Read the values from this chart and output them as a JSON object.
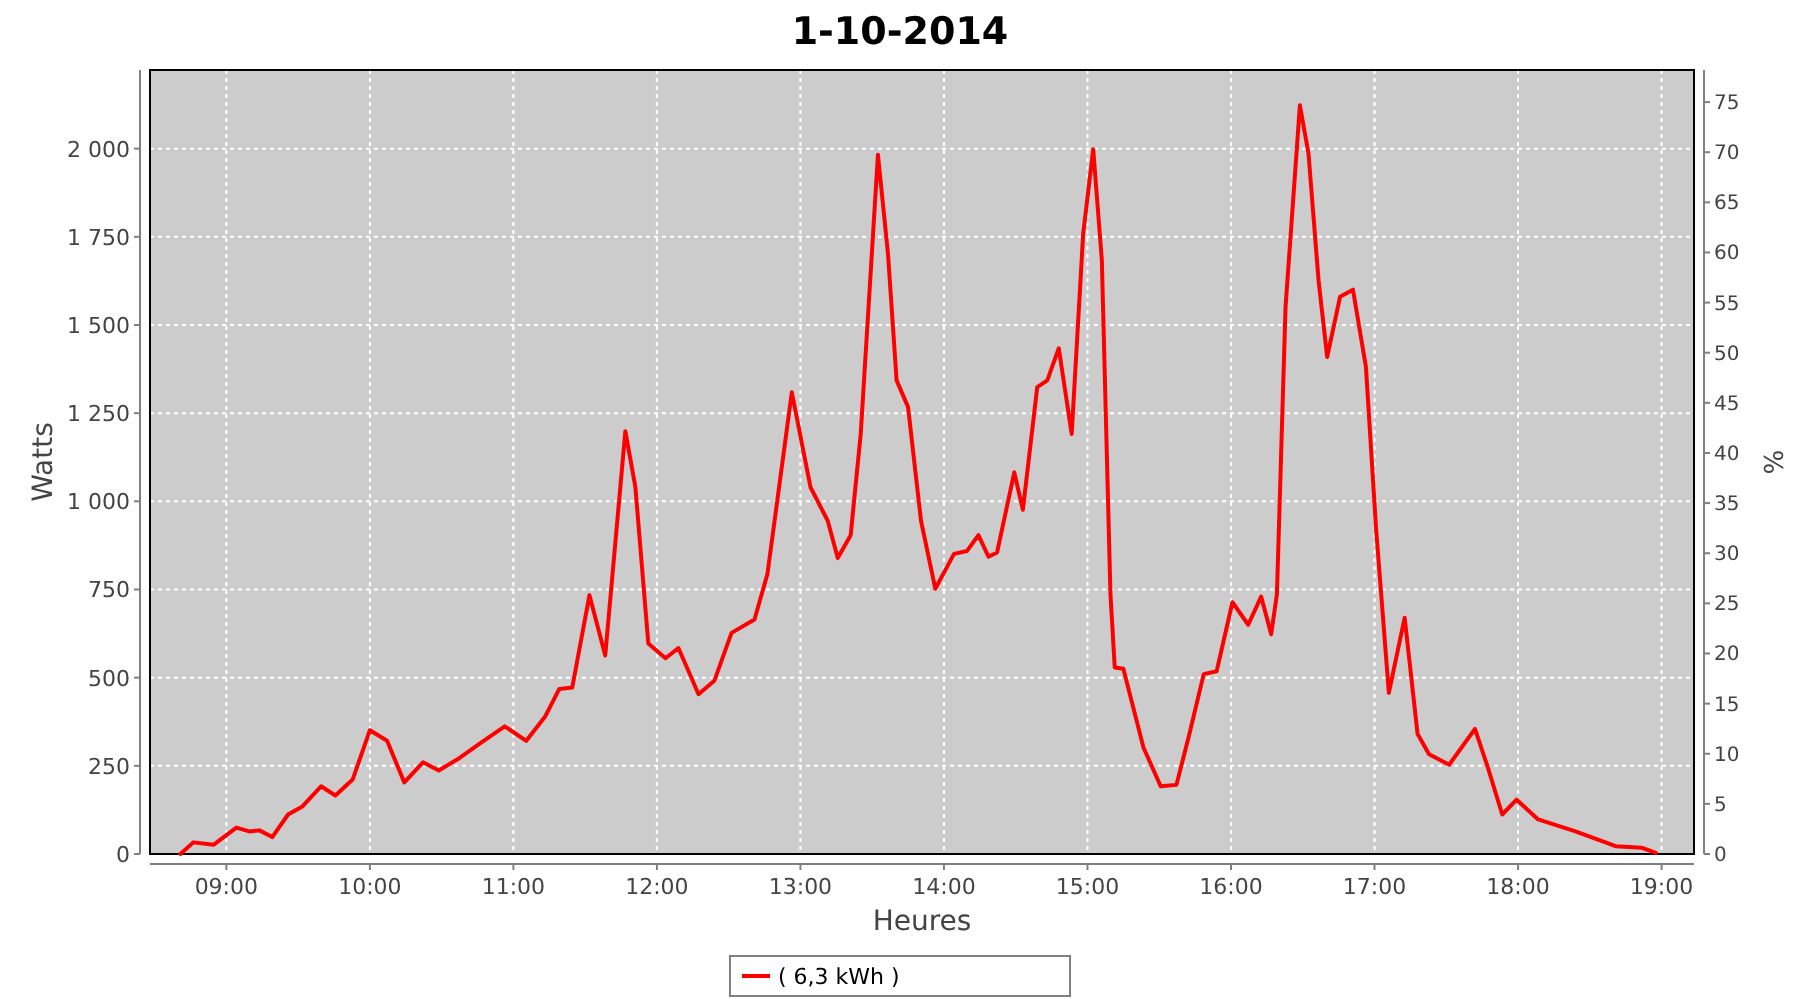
{
  "chart_data": {
    "type": "line",
    "title": "1-10-2014",
    "xlabel": "Heures",
    "ylabel": "Watts",
    "y2label": "%",
    "x": [
      8.68,
      8.77,
      8.91,
      9.07,
      9.16,
      9.23,
      9.32,
      9.43,
      9.53,
      9.66,
      9.76,
      9.88,
      10.0,
      10.12,
      10.24,
      10.37,
      10.48,
      10.62,
      10.78,
      10.94,
      11.09,
      11.22,
      11.32,
      11.41,
      11.53,
      11.64,
      11.78,
      11.85,
      11.94,
      12.06,
      12.15,
      12.29,
      12.4,
      12.52,
      12.68,
      12.77,
      12.94,
      13.07,
      13.19,
      13.26,
      13.35,
      13.42,
      13.54,
      13.61,
      13.67,
      13.75,
      13.84,
      13.94,
      14.07,
      14.16,
      14.24,
      14.31,
      14.37,
      14.49,
      14.55,
      14.65,
      14.72,
      14.8,
      14.89,
      14.97,
      15.04,
      15.1,
      15.16,
      15.19,
      15.25,
      15.39,
      15.51,
      15.62,
      15.71,
      15.81,
      15.9,
      16.01,
      16.12,
      16.21,
      16.28,
      16.32,
      16.38,
      16.48,
      16.54,
      16.61,
      16.67,
      16.76,
      16.85,
      16.94,
      17.01,
      17.1,
      17.21,
      17.3,
      17.38,
      17.52,
      17.7,
      17.79,
      17.89,
      17.99,
      18.14,
      18.4,
      18.68,
      18.86,
      18.96
    ],
    "series": [
      {
        "name": "( 6,3 kWh )",
        "color": "#ff0000",
        "values": [
          0,
          33,
          26,
          75,
          64,
          67,
          48,
          112,
          135,
          192,
          166,
          211,
          351,
          321,
          203,
          260,
          237,
          271,
          317,
          362,
          321,
          389,
          468,
          472,
          734,
          563,
          1199,
          1040,
          597,
          555,
          584,
          453,
          491,
          627,
          665,
          794,
          1309,
          1040,
          945,
          839,
          904,
          1191,
          1983,
          1702,
          1343,
          1267,
          945,
          752,
          851,
          859,
          904,
          843,
          855,
          1082,
          976,
          1324,
          1343,
          1434,
          1191,
          1759,
          1998,
          1684,
          737,
          529,
          525,
          302,
          192,
          196,
          340,
          510,
          518,
          714,
          650,
          730,
          623,
          737,
          1551,
          2123,
          1986,
          1627,
          1409,
          1580,
          1600,
          1381,
          927,
          457,
          670,
          340,
          283,
          253,
          355,
          245,
          112,
          154,
          98,
          64,
          22,
          18,
          3
        ]
      }
    ],
    "xlim": [
      8.468,
      19.226
    ],
    "xticks": [
      {
        "value": 9,
        "label": "09:00"
      },
      {
        "value": 10,
        "label": "10:00"
      },
      {
        "value": 11,
        "label": "11:00"
      },
      {
        "value": 12,
        "label": "12:00"
      },
      {
        "value": 13,
        "label": "13:00"
      },
      {
        "value": 14,
        "label": "14:00"
      },
      {
        "value": 15,
        "label": "15:00"
      },
      {
        "value": 16,
        "label": "16:00"
      },
      {
        "value": 17,
        "label": "17:00"
      },
      {
        "value": 18,
        "label": "18:00"
      },
      {
        "value": 19,
        "label": "19:00"
      }
    ],
    "ylim": [
      0,
      2223
    ],
    "yticks": [
      0,
      250,
      500,
      750,
      {
        "value": 1000,
        "label": "1 000"
      },
      {
        "value": 1250,
        "label": "1 250"
      },
      {
        "value": 1500,
        "label": "1 500"
      },
      {
        "value": 1750,
        "label": "1 750"
      },
      {
        "value": 2000,
        "label": "2 000"
      }
    ],
    "y2lim": [
      0,
      78.2
    ],
    "y2ticks": [
      0,
      5,
      10,
      15,
      20,
      25,
      30,
      35,
      40,
      45,
      50,
      55,
      60,
      65,
      70,
      75
    ],
    "grid": true,
    "legend": "bottom",
    "marker": "none",
    "line_style": "solid"
  }
}
